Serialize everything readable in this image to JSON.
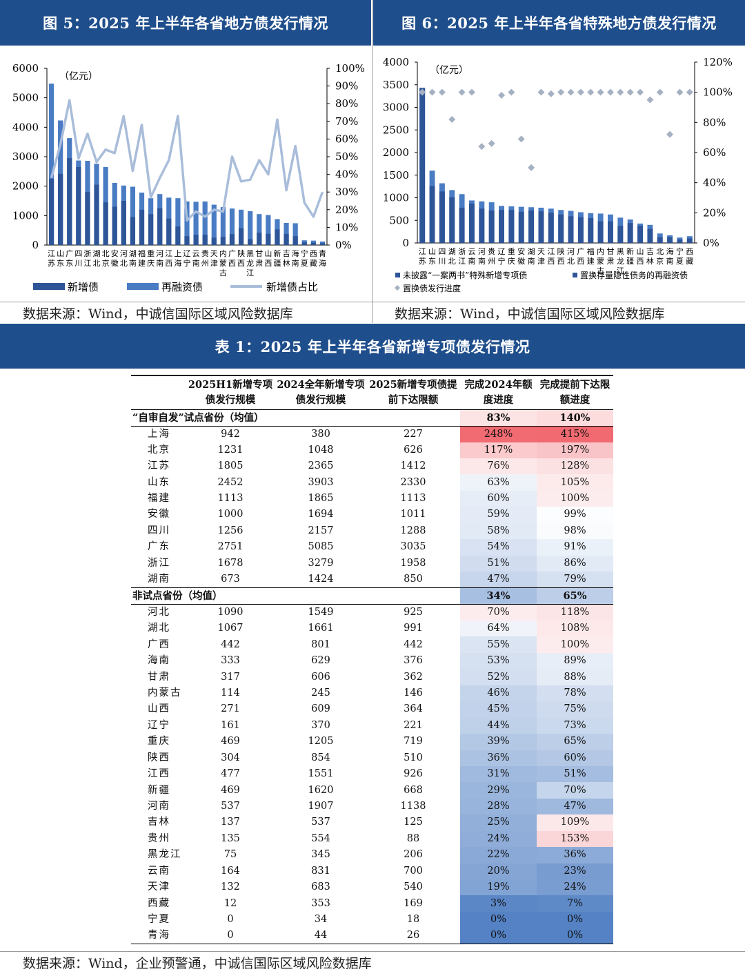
{
  "fig5": {
    "title": "图 5：2025 年上半年各省地方债发行情况",
    "source": "数据来源：Wind，中诚信国际区域风险数据库",
    "unit": "（亿元）",
    "legend": [
      "新增债",
      "再融资债",
      "新增债占比"
    ]
  },
  "fig6": {
    "title": "图 6：2025 年上半年各省特殊地方债发行情况",
    "source": "数据来源：Wind，中诚信国际区域风险数据库",
    "unit": "（亿元）",
    "legend": [
      "未披露“一案两书”特殊新增专项债",
      "置换存量隐性债务的再融资债",
      "置换债发行进度"
    ]
  },
  "table1": {
    "title": "表 1：2025 年上半年各省新增专项债发行情况",
    "source": "数据来源：Wind，企业预警通，中诚信国际区域风险数据库",
    "headers": [
      "2025H1新增专项债发行规模",
      "2024全年新增专项债发行规模",
      "2025新增专项债提前下达限额",
      "完成2024年额度进度",
      "完成提前下达限额进度"
    ],
    "groups": [
      {
        "label": "“自审自发”试点省份（均值）",
        "avg": [
          "83%",
          "140%"
        ],
        "rows": [
          [
            "上海",
            "942",
            "380",
            "227",
            "248%",
            "415%"
          ],
          [
            "北京",
            "1231",
            "1048",
            "626",
            "117%",
            "197%"
          ],
          [
            "江苏",
            "1805",
            "2365",
            "1412",
            "76%",
            "128%"
          ],
          [
            "山东",
            "2452",
            "3903",
            "2330",
            "63%",
            "105%"
          ],
          [
            "福建",
            "1113",
            "1865",
            "1113",
            "60%",
            "100%"
          ],
          [
            "安徽",
            "1000",
            "1694",
            "1011",
            "59%",
            "99%"
          ],
          [
            "四川",
            "1256",
            "2157",
            "1288",
            "58%",
            "98%"
          ],
          [
            "广东",
            "2751",
            "5085",
            "3035",
            "54%",
            "91%"
          ],
          [
            "浙江",
            "1678",
            "3279",
            "1958",
            "51%",
            "86%"
          ],
          [
            "湖南",
            "673",
            "1424",
            "850",
            "47%",
            "79%"
          ]
        ]
      },
      {
        "label": "非试点省份（均值）",
        "avg": [
          "34%",
          "65%"
        ],
        "rows": [
          [
            "河北",
            "1090",
            "1549",
            "925",
            "70%",
            "118%"
          ],
          [
            "湖北",
            "1067",
            "1661",
            "991",
            "64%",
            "108%"
          ],
          [
            "广西",
            "442",
            "801",
            "442",
            "55%",
            "100%"
          ],
          [
            "海南",
            "333",
            "629",
            "376",
            "53%",
            "89%"
          ],
          [
            "甘肃",
            "317",
            "606",
            "362",
            "52%",
            "88%"
          ],
          [
            "内蒙古",
            "114",
            "245",
            "146",
            "46%",
            "78%"
          ],
          [
            "山西",
            "271",
            "609",
            "364",
            "45%",
            "75%"
          ],
          [
            "辽宁",
            "161",
            "370",
            "221",
            "44%",
            "73%"
          ],
          [
            "重庆",
            "469",
            "1205",
            "719",
            "39%",
            "65%"
          ],
          [
            "陕西",
            "304",
            "854",
            "510",
            "36%",
            "60%"
          ],
          [
            "江西",
            "477",
            "1551",
            "926",
            "31%",
            "51%"
          ],
          [
            "新疆",
            "469",
            "1620",
            "668",
            "29%",
            "70%"
          ],
          [
            "河南",
            "537",
            "1907",
            "1138",
            "28%",
            "47%"
          ],
          [
            "吉林",
            "137",
            "537",
            "125",
            "25%",
            "109%"
          ],
          [
            "贵州",
            "135",
            "554",
            "88",
            "24%",
            "153%"
          ],
          [
            "黑龙江",
            "75",
            "345",
            "206",
            "22%",
            "36%"
          ],
          [
            "云南",
            "164",
            "831",
            "700",
            "20%",
            "23%"
          ],
          [
            "天津",
            "132",
            "683",
            "540",
            "19%",
            "24%"
          ],
          [
            "西藏",
            "12",
            "353",
            "169",
            "3%",
            "7%"
          ],
          [
            "宁夏",
            "0",
            "34",
            "18",
            "0%",
            "0%"
          ],
          [
            "青海",
            "0",
            "44",
            "26",
            "0%",
            "0%"
          ]
        ]
      }
    ]
  },
  "chart_data": [
    {
      "type": "bar",
      "title": "图 5：2025 年上半年各省地方债发行情况",
      "categories": [
        "江苏",
        "山东",
        "广东",
        "四川",
        "浙江",
        "湖北",
        "北京",
        "安徽",
        "河北",
        "湖南",
        "福建",
        "重庆",
        "河南",
        "江西",
        "上海",
        "辽宁",
        "云南",
        "贵州",
        "天津",
        "内蒙古",
        "广西",
        "陕西",
        "黑龙江",
        "甘肃",
        "山西",
        "新疆",
        "吉林",
        "海南",
        "宁夏",
        "西藏",
        "青海"
      ],
      "series": [
        {
          "name": "新增债",
          "kind": "stacked-bar",
          "axis": "left",
          "values": [
            2250,
            2420,
            2950,
            2650,
            1800,
            2050,
            1450,
            1300,
            1500,
            950,
            1200,
            1050,
            1250,
            900,
            630,
            300,
            350,
            350,
            250,
            280,
            370,
            570,
            200,
            420,
            380,
            530,
            380,
            300,
            90,
            80,
            60
          ]
        },
        {
          "name": "再融资债",
          "kind": "stacked-bar",
          "axis": "left",
          "values": [
            5480,
            4230,
            3630,
            2870,
            2860,
            2760,
            2650,
            2110,
            2020,
            1980,
            1780,
            1590,
            1730,
            1610,
            1590,
            1480,
            1470,
            1480,
            1370,
            1290,
            1240,
            1200,
            1150,
            1050,
            1020,
            880,
            750,
            740,
            160,
            150,
            120
          ]
        },
        {
          "name": "新增债占比",
          "kind": "line",
          "axis": "right",
          "values": [
            0.38,
            0.57,
            0.82,
            0.49,
            0.63,
            0.47,
            0.54,
            0.52,
            0.73,
            0.42,
            0.68,
            0.27,
            0.38,
            0.48,
            0.73,
            0.14,
            0.19,
            0.16,
            0.2,
            0.19,
            0.5,
            0.36,
            0.37,
            0.48,
            0.4,
            0.71,
            0.31,
            0.56,
            0.24,
            0.16,
            0.3
          ]
        }
      ],
      "ylim_left": [
        0,
        6000
      ],
      "ylim_right": [
        0,
        1.0
      ],
      "yunit": "（亿元）"
    },
    {
      "type": "bar",
      "title": "图 6：2025 年上半年各省特殊地方债发行情况",
      "categories": [
        "江苏",
        "山东",
        "四川",
        "湖北",
        "浙江",
        "云南",
        "河南",
        "贵州",
        "辽宁",
        "重庆",
        "安徽",
        "湖南",
        "天津",
        "江西",
        "陕西",
        "河北",
        "广西",
        "福建",
        "内蒙古",
        "甘肃",
        "黑龙江",
        "新疆",
        "山西",
        "吉林",
        "北京",
        "海南",
        "宁夏",
        "西藏"
      ],
      "series": [
        {
          "name": "未披露“一案两书”特殊新增专项债",
          "kind": "stacked-bar",
          "axis": "left",
          "values": [
            3430,
            1260,
            1140,
            1010,
            780,
            870,
            760,
            720,
            730,
            730,
            690,
            720,
            700,
            670,
            630,
            590,
            570,
            550,
            480,
            480,
            380,
            440,
            380,
            310,
            130,
            130,
            80,
            100
          ]
        },
        {
          "name": "置换存量隐性债务的再融资债",
          "kind": "stacked-bar",
          "axis": "left",
          "values": [
            3430,
            1600,
            1320,
            1170,
            1080,
            940,
            920,
            900,
            820,
            810,
            800,
            790,
            780,
            760,
            730,
            710,
            680,
            660,
            650,
            630,
            560,
            520,
            430,
            400,
            210,
            170,
            120,
            150
          ]
        },
        {
          "name": "置换债发行进度",
          "kind": "scatter",
          "axis": "right",
          "values": [
            1.0,
            1.0,
            1.0,
            0.82,
            1.0,
            1.0,
            0.64,
            0.66,
            0.98,
            1.0,
            0.69,
            0.5,
            1.0,
            0.99,
            1.0,
            1.0,
            1.0,
            1.0,
            1.0,
            1.0,
            1.0,
            1.0,
            1.0,
            0.95,
            1.0,
            0.72,
            1.0,
            1.0
          ]
        }
      ],
      "ylim_left": [
        0,
        4000
      ],
      "ylim_right": [
        0,
        1.2
      ],
      "yunit": "（亿元）"
    }
  ]
}
